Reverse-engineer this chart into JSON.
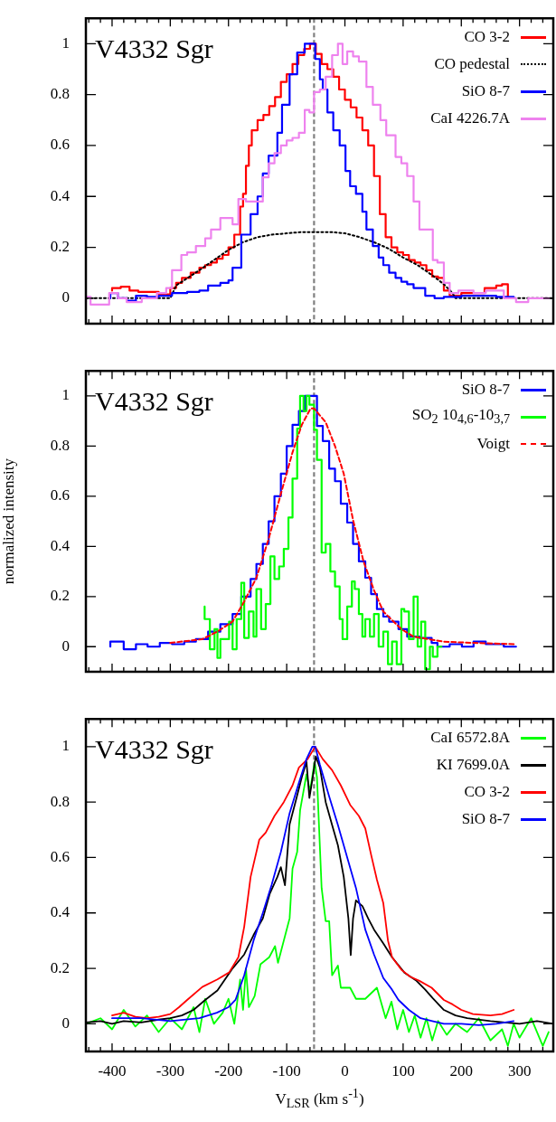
{
  "chart_data": [
    {
      "type": "step",
      "annotations": [
        "V4332 Sgr"
      ],
      "xlim": [
        -445,
        358
      ],
      "ylim": [
        -0.1,
        1.1
      ],
      "tick_labels": "y",
      "legend": "top right",
      "xticks": [
        {
          "value": -440,
          "label": null
        },
        {
          "value": -420,
          "label": null
        },
        -400,
        {
          "value": -380,
          "label": null
        },
        {
          "value": -360,
          "label": null
        },
        {
          "value": -340,
          "label": null
        },
        {
          "value": -320,
          "label": null
        },
        -300,
        {
          "value": -280,
          "label": null
        },
        {
          "value": -260,
          "label": null
        },
        {
          "value": -240,
          "label": null
        },
        {
          "value": -220,
          "label": null
        },
        -200,
        {
          "value": -180,
          "label": null
        },
        {
          "value": -160,
          "label": null
        },
        {
          "value": -140,
          "label": null
        },
        {
          "value": -120,
          "label": null
        },
        -100,
        {
          "value": -80,
          "label": null
        },
        {
          "value": -60,
          "label": null
        },
        {
          "value": -40,
          "label": null
        },
        {
          "value": -20,
          "label": null
        },
        0,
        {
          "value": 20,
          "label": null
        },
        {
          "value": 40,
          "label": null
        },
        {
          "value": 60,
          "label": null
        },
        {
          "value": 80,
          "label": null
        },
        100,
        {
          "value": 120,
          "label": null
        },
        {
          "value": 140,
          "label": null
        },
        {
          "value": 160,
          "label": null
        },
        {
          "value": 180,
          "label": null
        },
        200,
        {
          "value": 220,
          "label": null
        },
        {
          "value": 240,
          "label": null
        },
        {
          "value": 260,
          "label": null
        },
        {
          "value": 280,
          "label": null
        },
        300,
        {
          "value": 320,
          "label": null
        },
        {
          "value": 340,
          "label": null
        }
      ],
      "yticks": [
        0,
        0.2,
        0.4,
        0.6,
        0.8,
        1
      ],
      "ref_lines": [
        {
          "axis": "x",
          "value": -53,
          "color": "#808080",
          "line_style": "dashed"
        }
      ],
      "series": [
        {
          "name": "CO 3-2",
          "color": "#ff0000",
          "x": [
            -400,
            -385,
            -370,
            -355,
            -340,
            -320,
            -300,
            -290,
            -280,
            -265,
            -250,
            -240,
            -230,
            -220,
            -210,
            -200,
            -190,
            -180,
            -175,
            -170,
            -165,
            -160,
            -150,
            -140,
            -130,
            -120,
            -110,
            -100,
            -90,
            -80,
            -70,
            -60,
            -50,
            -40,
            -30,
            -20,
            -10,
            0,
            10,
            20,
            30,
            40,
            50,
            60,
            70,
            80,
            90,
            100,
            110,
            120,
            130,
            140,
            150,
            160,
            170,
            180,
            190,
            200,
            220,
            240,
            260,
            270,
            280,
            290
          ],
          "values": [
            0.03,
            0.04,
            0.045,
            0.03,
            0.025,
            0.025,
            0.015,
            0.04,
            0.06,
            0.08,
            0.1,
            0.12,
            0.13,
            0.14,
            0.155,
            0.17,
            0.2,
            0.25,
            0.36,
            0.41,
            0.52,
            0.6,
            0.66,
            0.7,
            0.72,
            0.755,
            0.79,
            0.85,
            0.88,
            0.92,
            0.955,
            0.98,
            1,
            0.96,
            0.92,
            0.9,
            0.87,
            0.82,
            0.78,
            0.75,
            0.71,
            0.66,
            0.6,
            0.48,
            0.33,
            0.24,
            0.2,
            0.18,
            0.17,
            0.15,
            0.14,
            0.13,
            0.11,
            0.085,
            0.08,
            0.03,
            0.01,
            0.01,
            0.02,
            0.02,
            0.04,
            0.05,
            0.055,
            0
          ]
        },
        {
          "name": "CO pedestal",
          "color": "#000000",
          "type": "line",
          "line_style": "dotted",
          "x": [
            -445,
            -300,
            -290,
            -270,
            -250,
            -225,
            -200,
            -175,
            -150,
            -125,
            -100,
            -75,
            -53,
            -25,
            0,
            25,
            50,
            75,
            100,
            125,
            150,
            170,
            185,
            190,
            358
          ],
          "values": [
            0,
            0,
            0.05,
            0.08,
            0.11,
            0.15,
            0.19,
            0.22,
            0.24,
            0.25,
            0.255,
            0.26,
            0.26,
            0.26,
            0.255,
            0.24,
            0.22,
            0.195,
            0.16,
            0.13,
            0.09,
            0.055,
            0.02,
            0,
            0
          ]
        },
        {
          "name": "SiO 8-7",
          "color": "#0000ff",
          "x": [
            -403,
            -390,
            -375,
            -359,
            -340,
            -320,
            -297,
            -271,
            -250,
            -235,
            -214,
            -200,
            -193,
            -178,
            -162,
            -150,
            -141,
            -131,
            -116,
            -108,
            -95,
            -82,
            -69,
            -59,
            -51,
            -43,
            -38,
            -30,
            -20,
            -9,
            1,
            9,
            19,
            30,
            37,
            48,
            58,
            66,
            76,
            87,
            97,
            107,
            118,
            138,
            154,
            170,
            200,
            230,
            260,
            290
          ],
          "values": [
            0,
            0.02,
            0,
            -0.01,
            0.01,
            0.005,
            0.01,
            0.02,
            0.025,
            0.03,
            0.05,
            0.06,
            0.07,
            0.12,
            0.25,
            0.33,
            0.4,
            0.49,
            0.56,
            0.65,
            0.76,
            0.88,
            0.965,
            1,
            1,
            0.94,
            0.86,
            0.82,
            0.73,
            0.66,
            0.6,
            0.5,
            0.44,
            0.41,
            0.34,
            0.27,
            0.205,
            0.16,
            0.13,
            0.1,
            0.08,
            0.065,
            0.055,
            0.04,
            0.01,
            0,
            0.005,
            0.01,
            0.01,
            0.005
          ]
        },
        {
          "name": "CaI 4226.7A",
          "color": "#ee82ee",
          "x": [
            -445,
            -437,
            -421,
            -405,
            -390,
            -375,
            -349,
            -323,
            -307,
            -297,
            -281,
            -271,
            -256,
            -240,
            -230,
            -214,
            -204,
            -193,
            -183,
            -170,
            -141,
            -131,
            -121,
            -110,
            -100,
            -90,
            -79,
            -69,
            -61,
            -53,
            -43,
            -33,
            -22,
            -12,
            -4,
            4,
            14,
            24,
            37,
            48,
            61,
            71,
            87,
            97,
            107,
            118,
            128,
            138,
            151,
            159,
            170,
            180,
            195,
            221,
            242,
            273,
            294,
            315,
            335,
            351
          ],
          "values": [
            -0.015,
            0.005,
            -0.025,
            -0.025,
            0.02,
            0,
            -0.015,
            0,
            0.02,
            0.04,
            0.11,
            0.17,
            0.18,
            0.205,
            0.235,
            0.27,
            0.315,
            0.315,
            0.29,
            0.39,
            0.38,
            0.475,
            0.53,
            0.57,
            0.6,
            0.62,
            0.63,
            0.65,
            0.74,
            0.73,
            0.81,
            0.82,
            0.87,
            0.955,
            1,
            0.92,
            0.97,
            0.95,
            0.93,
            0.83,
            0.76,
            0.7,
            0.64,
            0.555,
            0.53,
            0.48,
            0.38,
            0.27,
            0.27,
            0.15,
            0.14,
            0.06,
            0.02,
            0.03,
            0.02,
            0.03,
            0,
            -0.015,
            0,
            0
          ]
        }
      ]
    },
    {
      "type": "step",
      "annotations": [
        "V4332 Sgr"
      ],
      "ylabel": "normalized intensity",
      "xlim": [
        -445,
        358
      ],
      "ylim": [
        -0.1,
        1.1
      ],
      "tick_labels": "y",
      "legend": "top right",
      "xticks": [
        {
          "value": -440,
          "label": null
        },
        {
          "value": -420,
          "label": null
        },
        -400,
        {
          "value": -380,
          "label": null
        },
        {
          "value": -360,
          "label": null
        },
        {
          "value": -340,
          "label": null
        },
        {
          "value": -320,
          "label": null
        },
        -300,
        {
          "value": -280,
          "label": null
        },
        {
          "value": -260,
          "label": null
        },
        {
          "value": -240,
          "label": null
        },
        {
          "value": -220,
          "label": null
        },
        -200,
        {
          "value": -180,
          "label": null
        },
        {
          "value": -160,
          "label": null
        },
        {
          "value": -140,
          "label": null
        },
        {
          "value": -120,
          "label": null
        },
        -100,
        {
          "value": -80,
          "label": null
        },
        {
          "value": -60,
          "label": null
        },
        {
          "value": -40,
          "label": null
        },
        {
          "value": -20,
          "label": null
        },
        0,
        {
          "value": 20,
          "label": null
        },
        {
          "value": 40,
          "label": null
        },
        {
          "value": 60,
          "label": null
        },
        {
          "value": 80,
          "label": null
        },
        100,
        {
          "value": 120,
          "label": null
        },
        {
          "value": 140,
          "label": null
        },
        {
          "value": 160,
          "label": null
        },
        {
          "value": 180,
          "label": null
        },
        200,
        {
          "value": 220,
          "label": null
        },
        {
          "value": 240,
          "label": null
        },
        {
          "value": 260,
          "label": null
        },
        {
          "value": 280,
          "label": null
        },
        300,
        {
          "value": 320,
          "label": null
        },
        {
          "value": 340,
          "label": null
        }
      ],
      "yticks": [
        0,
        0.2,
        0.4,
        0.6,
        0.8,
        1
      ],
      "ref_lines": [
        {
          "axis": "x",
          "value": -53,
          "color": "#808080",
          "line_style": "dashed"
        }
      ],
      "series": [
        {
          "name": "SiO 8-7",
          "color": "#0000ff",
          "x": [
            -403,
            -380,
            -359,
            -339,
            -318,
            -297,
            -276,
            -256,
            -235,
            -214,
            -193,
            -178,
            -162,
            -152,
            -141,
            -131,
            -121,
            -110,
            -100,
            -90,
            -79,
            -69,
            -59,
            -48,
            -38,
            -27,
            -17,
            -7,
            4,
            14,
            24,
            35,
            45,
            55,
            66,
            76,
            92,
            107,
            128,
            149,
            159,
            180,
            201,
            221,
            242,
            273,
            294
          ],
          "values": [
            0,
            0.02,
            -0.01,
            0.01,
            0,
            0.015,
            0.01,
            0.02,
            0.03,
            0.06,
            0.09,
            0.13,
            0.2,
            0.27,
            0.33,
            0.41,
            0.5,
            0.6,
            0.69,
            0.8,
            0.885,
            0.94,
            1,
            1,
            0.88,
            0.82,
            0.71,
            0.66,
            0.57,
            0.495,
            0.41,
            0.34,
            0.275,
            0.21,
            0.15,
            0.12,
            0.1,
            0.07,
            0.04,
            0.035,
            0.015,
            0,
            0.01,
            0,
            0.02,
            0.01,
            0
          ]
        },
        {
          "name": "SO$_{2}$ 10$_{4,6}$-10$_{3,7}$",
          "color": "#00ff00",
          "x": [
            -241,
            -232,
            -224,
            -219,
            -214,
            -199,
            -193,
            -186,
            -178,
            -173,
            -165,
            -157,
            -152,
            -144,
            -136,
            -128,
            -121,
            -113,
            -105,
            -97,
            -90,
            -82,
            -77,
            -71,
            -66,
            -61,
            -53,
            -48,
            -40,
            -33,
            -25,
            -17,
            -9,
            -4,
            4,
            12,
            17,
            24,
            30,
            35,
            43,
            50,
            58,
            66,
            74,
            81,
            89,
            97,
            102,
            110,
            118,
            125,
            131,
            138,
            146,
            151,
            159,
            166
          ],
          "values": [
            0.16,
            0.11,
            -0.01,
            0.07,
            -0.045,
            0.03,
            0.1,
            -0.01,
            0.11,
            0.255,
            0.035,
            0.14,
            0.04,
            0.23,
            0.07,
            0.17,
            0.36,
            0.27,
            0.32,
            0.39,
            0.515,
            0.67,
            0.87,
            1,
            0.94,
            1,
            0.965,
            0.865,
            0.745,
            0.375,
            0.41,
            0.3,
            0.24,
            0.11,
            0.03,
            0.16,
            0.26,
            0.23,
            0.13,
            0.04,
            0.11,
            0.04,
            0.13,
            0,
            0.06,
            -0.07,
            0.02,
            -0.07,
            0.15,
            0.14,
            0.03,
            0.2,
            0,
            0.1,
            -0.09,
            0,
            -0.04,
            0
          ]
        },
        {
          "name": "Voigt",
          "color": "#ff0000",
          "type": "line",
          "line_style": "dashed",
          "x": [
            -300,
            -245,
            -219,
            -193,
            -173,
            -152,
            -131,
            -110,
            -90,
            -74,
            -59,
            -53,
            -33,
            -17,
            -2,
            14,
            32,
            50,
            66,
            97,
            118,
            170,
            221,
            294
          ],
          "values": [
            0.015,
            0.03,
            0.06,
            0.1,
            0.18,
            0.275,
            0.43,
            0.61,
            0.775,
            0.885,
            0.95,
            0.95,
            0.895,
            0.8,
            0.69,
            0.505,
            0.34,
            0.225,
            0.14,
            0.07,
            0.04,
            0.02,
            0.015,
            0.01
          ]
        }
      ]
    },
    {
      "type": "line",
      "annotations": [
        "V4332 Sgr"
      ],
      "xlabel": "V$_{LSR}$ (km s$^{-1}$)",
      "xlim": [
        -445,
        358
      ],
      "ylim": [
        -0.1,
        1.1
      ],
      "legend": "top right",
      "xticks": [
        {
          "value": -440,
          "label": null
        },
        {
          "value": -420,
          "label": null
        },
        -400,
        {
          "value": -380,
          "label": null
        },
        {
          "value": -360,
          "label": null
        },
        {
          "value": -340,
          "label": null
        },
        {
          "value": -320,
          "label": null
        },
        -300,
        {
          "value": -280,
          "label": null
        },
        {
          "value": -260,
          "label": null
        },
        {
          "value": -240,
          "label": null
        },
        {
          "value": -220,
          "label": null
        },
        -200,
        {
          "value": -180,
          "label": null
        },
        {
          "value": -160,
          "label": null
        },
        {
          "value": -140,
          "label": null
        },
        {
          "value": -120,
          "label": null
        },
        -100,
        {
          "value": -80,
          "label": null
        },
        {
          "value": -60,
          "label": null
        },
        {
          "value": -40,
          "label": null
        },
        {
          "value": -20,
          "label": null
        },
        0,
        {
          "value": 20,
          "label": null
        },
        {
          "value": 40,
          "label": null
        },
        {
          "value": 60,
          "label": null
        },
        {
          "value": 80,
          "label": null
        },
        100,
        {
          "value": 120,
          "label": null
        },
        {
          "value": 140,
          "label": null
        },
        {
          "value": 160,
          "label": null
        },
        {
          "value": 180,
          "label": null
        },
        200,
        {
          "value": 220,
          "label": null
        },
        {
          "value": 240,
          "label": null
        },
        {
          "value": 260,
          "label": null
        },
        {
          "value": 280,
          "label": null
        },
        300,
        {
          "value": 320,
          "label": null
        },
        {
          "value": 340,
          "label": null
        }
      ],
      "yticks": [
        0,
        0.2,
        0.4,
        0.6,
        0.8,
        1
      ],
      "ref_lines": [
        {
          "axis": "x",
          "value": -53,
          "color": "#808080",
          "line_style": "dashed"
        }
      ],
      "series": [
        {
          "name": "CaI 6572.8A",
          "color": "#00ff00",
          "x": [
            -445,
            -420,
            -400,
            -380,
            -360,
            -340,
            -320,
            -300,
            -280,
            -260,
            -250,
            -240,
            -225,
            -210,
            -200,
            -190,
            -180,
            -175,
            -170,
            -165,
            -155,
            -145,
            -130,
            -120,
            -115,
            -95,
            -90,
            -82,
            -77,
            -66,
            -60,
            -52,
            -48,
            -40,
            -33,
            -27,
            -22,
            -12,
            -7,
            9,
            19,
            35,
            55,
            70,
            80,
            90,
            100,
            110,
            120,
            130,
            140,
            150,
            160,
            175,
            190,
            210,
            230,
            250,
            270,
            280,
            290,
            300,
            320,
            340,
            350
          ],
          "values": [
            0,
            0.02,
            -0.02,
            0.05,
            -0.01,
            0.03,
            -0.03,
            0.02,
            -0.02,
            0.06,
            -0.03,
            0.09,
            0,
            0.04,
            0.09,
            0,
            0.16,
            0.05,
            0.2,
            0.06,
            0.1,
            0.215,
            0.24,
            0.28,
            0.22,
            0.38,
            0.56,
            0.62,
            0.77,
            0.9,
            0.84,
            0.945,
            0.89,
            0.49,
            0.37,
            0.37,
            0.175,
            0.21,
            0.13,
            0.13,
            0.09,
            0.09,
            0.13,
            0.02,
            0.08,
            -0.02,
            0.05,
            -0.03,
            0.03,
            -0.05,
            0.02,
            -0.06,
            0.01,
            -0.04,
            0,
            -0.03,
            0.02,
            -0.06,
            -0.02,
            -0.08,
            0,
            -0.05,
            0.02,
            -0.08,
            -0.03
          ]
        },
        {
          "name": "KI 7699.0A",
          "color": "#000000",
          "x": [
            -445,
            -420,
            -400,
            -380,
            -350,
            -320,
            -300,
            -280,
            -260,
            -240,
            -219,
            -193,
            -173,
            -157,
            -141,
            -129,
            -116,
            -110,
            -103,
            -95,
            -85,
            -74,
            -66,
            -61,
            -56,
            -50,
            -43,
            -33,
            -22,
            -12,
            -2,
            6,
            10,
            14,
            19,
            30,
            40,
            50,
            66,
            81,
            102,
            123,
            138,
            151,
            170,
            190,
            210,
            250,
            300,
            330,
            358
          ],
          "values": [
            0.005,
            0.01,
            0,
            0.01,
            0.005,
            0.015,
            0.02,
            0.03,
            0.05,
            0.086,
            0.12,
            0.2,
            0.25,
            0.32,
            0.38,
            0.47,
            0.53,
            0.565,
            0.5,
            0.72,
            0.8,
            0.89,
            0.945,
            0.815,
            0.88,
            0.965,
            0.925,
            0.8,
            0.717,
            0.644,
            0.53,
            0.38,
            0.248,
            0.38,
            0.445,
            0.425,
            0.38,
            0.34,
            0.29,
            0.24,
            0.185,
            0.155,
            0.123,
            0.092,
            0.05,
            0.03,
            0.02,
            0.01,
            0,
            0.01,
            0
          ]
        },
        {
          "name": "CO 3-2",
          "color": "#ff0000",
          "x": [
            -400,
            -380,
            -360,
            -340,
            -320,
            -300,
            -285,
            -271,
            -245,
            -219,
            -199,
            -183,
            -173,
            -162,
            -147,
            -136,
            -121,
            -105,
            -90,
            -79,
            -64,
            -51,
            -38,
            -22,
            -7,
            9,
            24,
            35,
            45,
            55,
            66,
            74,
            81,
            97,
            112,
            128,
            149,
            170,
            185,
            200,
            220,
            250,
            270,
            290
          ],
          "values": [
            0.03,
            0.04,
            0.025,
            0.02,
            0.025,
            0.035,
            0.06,
            0.086,
            0.133,
            0.16,
            0.185,
            0.24,
            0.35,
            0.53,
            0.665,
            0.69,
            0.75,
            0.8,
            0.86,
            0.925,
            0.955,
            1,
            0.955,
            0.915,
            0.86,
            0.79,
            0.75,
            0.705,
            0.61,
            0.52,
            0.435,
            0.3,
            0.24,
            0.195,
            0.17,
            0.155,
            0.13,
            0.086,
            0.07,
            0.05,
            0.035,
            0.03,
            0.035,
            0.05
          ]
        },
        {
          "name": "SiO 8-7",
          "color": "#0000ff",
          "x": [
            -400,
            -350,
            -300,
            -250,
            -220,
            -200,
            -188,
            -173,
            -157,
            -141,
            -126,
            -110,
            -95,
            -79,
            -66,
            -56,
            -51,
            -43,
            -27,
            -12,
            4,
            19,
            35,
            50,
            66,
            81,
            92,
            110,
            130,
            150,
            170,
            200,
            230,
            260,
            290
          ],
          "values": [
            0.02,
            0.02,
            0.01,
            0.02,
            0.04,
            0.06,
            0.086,
            0.175,
            0.3,
            0.4,
            0.5,
            0.62,
            0.76,
            0.87,
            0.955,
            1,
            1,
            0.935,
            0.82,
            0.717,
            0.6,
            0.49,
            0.34,
            0.25,
            0.165,
            0.123,
            0.086,
            0.05,
            0.02,
            0.01,
            0,
            0,
            -0.005,
            0,
            0.01
          ]
        }
      ]
    }
  ]
}
